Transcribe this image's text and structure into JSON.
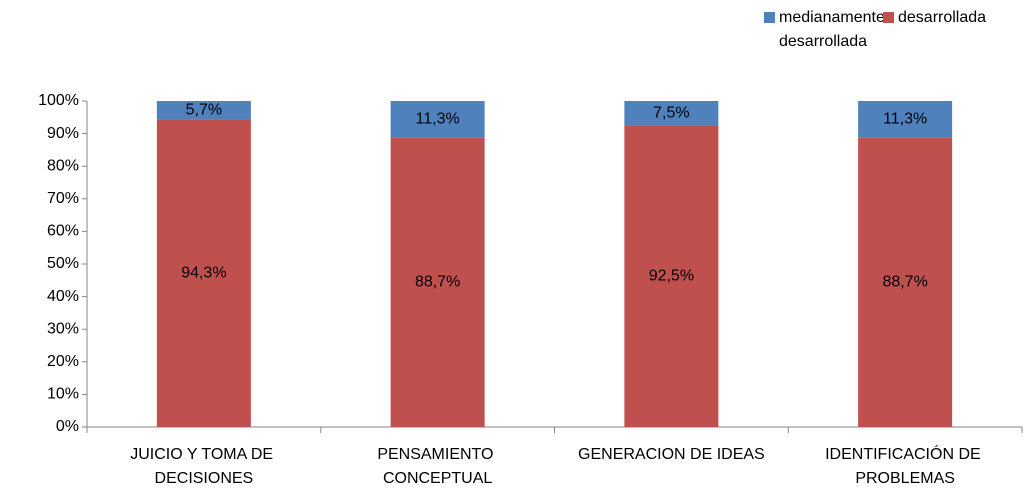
{
  "chart_data": {
    "type": "stacked_bar",
    "categories": [
      "JUICIO Y TOMA DE DECISIONES",
      "PENSAMIENTO CONCEPTUAL",
      "GENERACION DE IDEAS",
      "IDENTIFICACIÓN DE PROBLEMAS"
    ],
    "series": [
      {
        "name": "medianamente desarrollada",
        "color": "#4f81bd",
        "values": [
          5.7,
          11.3,
          7.5,
          11.3
        ],
        "value_labels": [
          "5,7%",
          "11,3%",
          "7,5%",
          "11,3%"
        ]
      },
      {
        "name": "desarrollada",
        "color": "#c0504d",
        "values": [
          94.3,
          88.7,
          92.5,
          88.7
        ],
        "value_labels": [
          "94,3%",
          "88,7%",
          "92,5%",
          "88,7%"
        ]
      }
    ],
    "ylim": [
      0,
      100
    ],
    "yticks": [
      {
        "value": 0,
        "label": "0%"
      },
      {
        "value": 10,
        "label": "10%"
      },
      {
        "value": 20,
        "label": "20%"
      },
      {
        "value": 30,
        "label": "30%"
      },
      {
        "value": 40,
        "label": "40%"
      },
      {
        "value": 50,
        "label": "50%"
      },
      {
        "value": 60,
        "label": "60%"
      },
      {
        "value": 70,
        "label": "70%"
      },
      {
        "value": 80,
        "label": "80%"
      },
      {
        "value": 90,
        "label": "90%"
      },
      {
        "value": 100,
        "label": "100%"
      }
    ],
    "grid": false,
    "legend": "top-right"
  }
}
